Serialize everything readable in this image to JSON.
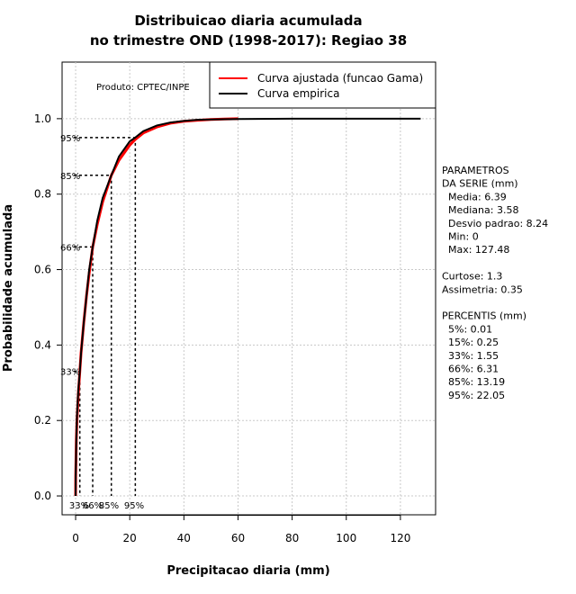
{
  "chart_data": {
    "type": "line",
    "title_lines": [
      "Distribuicao diaria acumulada",
      "no trimestre OND (1998-2017): Regiao 38"
    ],
    "xlabel": "Precipitacao diaria (mm)",
    "ylabel": "Probabilidade acumulada",
    "xlim": [
      -5,
      133
    ],
    "ylim": [
      -0.05,
      1.15
    ],
    "x_ticks": [
      0,
      20,
      40,
      60,
      80,
      100,
      120
    ],
    "y_ticks": [
      0.0,
      0.2,
      0.4,
      0.6,
      0.8,
      1.0
    ],
    "y_tick_labels": [
      "0.0",
      "0.2",
      "0.4",
      "0.6",
      "0.8",
      "1.0"
    ],
    "grid": true,
    "product_label": "Produto: CPTEC/INPE",
    "legend": {
      "position": "top-right",
      "entries": [
        {
          "label": "Curva ajustada (funcao Gama)",
          "color": "#ff0000"
        },
        {
          "label": "Curva empirica",
          "color": "#000000"
        }
      ]
    },
    "series": [
      {
        "name": "Curva ajustada (funcao Gama)",
        "color": "#ff0000",
        "x": [
          0,
          0.01,
          0.25,
          0.5,
          1,
          1.55,
          2,
          3,
          4,
          5,
          6.31,
          8,
          10,
          13.19,
          16,
          20,
          22.05,
          25,
          30,
          35,
          40,
          45,
          50,
          55,
          60
        ],
        "y": [
          0.0,
          0.05,
          0.15,
          0.2,
          0.27,
          0.33,
          0.38,
          0.46,
          0.53,
          0.59,
          0.66,
          0.72,
          0.78,
          0.85,
          0.89,
          0.93,
          0.945,
          0.962,
          0.978,
          0.988,
          0.993,
          0.996,
          0.998,
          0.999,
          1.0
        ]
      },
      {
        "name": "Curva empirica",
        "color": "#000000",
        "x": [
          0,
          0.01,
          0.25,
          0.5,
          1,
          1.55,
          2,
          3,
          4,
          5,
          6.31,
          8,
          10,
          13.19,
          16,
          20,
          22.05,
          25,
          30,
          35,
          40,
          45,
          50,
          60,
          80,
          100,
          127.48
        ],
        "y": [
          0.0,
          0.05,
          0.15,
          0.21,
          0.28,
          0.33,
          0.38,
          0.46,
          0.53,
          0.6,
          0.66,
          0.73,
          0.79,
          0.85,
          0.9,
          0.94,
          0.95,
          0.967,
          0.982,
          0.99,
          0.994,
          0.997,
          0.998,
          0.999,
          1.0,
          1.0,
          1.0
        ]
      }
    ],
    "percentile_markers": [
      {
        "label": "33%",
        "x": 1.55,
        "y": 0.33
      },
      {
        "label": "66%",
        "x": 6.31,
        "y": 0.66
      },
      {
        "label": "85%",
        "x": 13.19,
        "y": 0.85
      },
      {
        "label": "95%",
        "x": 22.05,
        "y": 0.95
      }
    ],
    "stats_panel": [
      "PARAMETROS",
      "DA SERIE (mm)",
      "  Media: 6.39",
      "  Mediana: 3.58",
      "  Desvio padrao: 8.24",
      "  Min: 0",
      "  Max: 127.48",
      "",
      "Curtose: 1.3",
      "Assimetria: 0.35",
      "",
      "PERCENTIS (mm)",
      "  5%: 0.01",
      "  15%: 0.25",
      "  33%: 1.55",
      "  66%: 6.31",
      "  85%: 13.19",
      "  95%: 22.05"
    ]
  }
}
